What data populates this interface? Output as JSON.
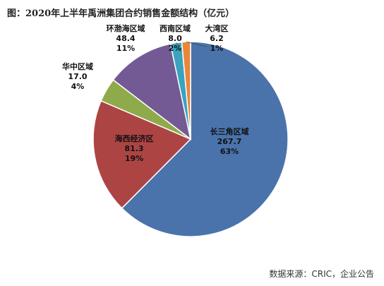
{
  "title": "图：2020年上半年禹洲集团合约销售金额结构（亿元）",
  "source": "数据来源：CRIC，企业公告",
  "chart_data": {
    "type": "pie",
    "title": "图：2020年上半年禹洲集团合约销售金额结构（亿元）",
    "unit": "亿元",
    "legend": "none",
    "slices": [
      {
        "name": "长三角区域",
        "value": 267.7,
        "value_label": "267.7",
        "percent_label": "63%",
        "color": "#4a73ac"
      },
      {
        "name": "海西经济区",
        "value": 81.3,
        "value_label": "81.3",
        "percent_label": "19%",
        "color": "#ad4444"
      },
      {
        "name": "华中区域",
        "value": 17.0,
        "value_label": "17.0",
        "percent_label": "4%",
        "color": "#8eaa4b"
      },
      {
        "name": "环渤海区域",
        "value": 48.4,
        "value_label": "48.4",
        "percent_label": "11%",
        "color": "#735a94"
      },
      {
        "name": "西南区域",
        "value": 8.0,
        "value_label": "8.0",
        "percent_label": "2%",
        "color": "#3aa3bf"
      },
      {
        "name": "大湾区",
        "value": 6.2,
        "value_label": "6.2",
        "percent_label": "1%",
        "color": "#e8873c"
      }
    ]
  }
}
